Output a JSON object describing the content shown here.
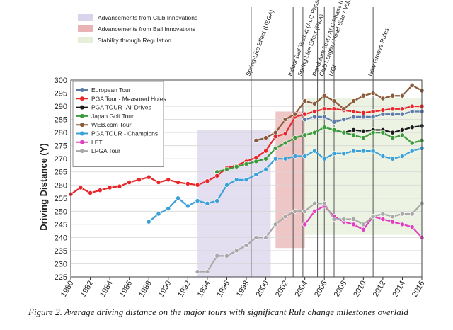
{
  "caption": "Figure 2. Average driving distance on the major tours with significant Rule change milestones overlaid",
  "chart_data": {
    "type": "line",
    "ylabel": "Driving Distance (Y)",
    "xlabel": "",
    "xlim": [
      1980,
      2016
    ],
    "ylim": [
      225,
      300
    ],
    "x_ticks": [
      1980,
      1982,
      1984,
      1986,
      1988,
      1990,
      1992,
      1994,
      1996,
      1998,
      2000,
      2002,
      2004,
      2006,
      2008,
      2010,
      2012,
      2014,
      2016
    ],
    "y_ticks": [
      225,
      230,
      235,
      240,
      245,
      250,
      255,
      260,
      265,
      270,
      275,
      280,
      285,
      290,
      295,
      300
    ],
    "grid": "horizontal",
    "legend_position": "top-left",
    "regions": [
      {
        "name": "Advancements from Club Innovations",
        "x": [
          1993,
          2000.5
        ],
        "y": [
          225,
          281
        ],
        "color": "#d9d4ec"
      },
      {
        "name": "Advancements from Ball Innovations",
        "x": [
          2001,
          2004
        ],
        "y": [
          236,
          288
        ],
        "color": "#e9b3b3"
      },
      {
        "name": "Stability through Regulation",
        "x": [
          2004,
          2016
        ],
        "y": [
          241,
          293
        ],
        "color": "#e6efd8"
      }
    ],
    "milestones": [
      {
        "x": 1998.5,
        "label": "Spring-Like Effect (USGA)"
      },
      {
        "x": 2002.8,
        "label": "Indoor Ball Testing (ALC Phase I)"
      },
      {
        "x": 2003.8,
        "label": "Spring-Like Effect (R&A)"
      },
      {
        "x": 2005.3,
        "label": "Pendulum Test / ALC Phase II"
      },
      {
        "x": 2006,
        "label": "Club Length / Head Size / Volume"
      },
      {
        "x": 2007,
        "label": "MOI"
      },
      {
        "x": 2011,
        "label": "New Groove Rules"
      }
    ],
    "series": [
      {
        "name": "European Tour",
        "color": "#5b7aa8",
        "x": [
          2004,
          2005,
          2006,
          2007,
          2008,
          2009,
          2010,
          2011,
          2012,
          2013,
          2014,
          2015,
          2016
        ],
        "y": [
          285,
          286,
          286,
          284,
          285,
          286,
          286,
          286,
          287,
          287,
          287,
          288,
          288
        ]
      },
      {
        "name": "PGA Tour - Measured Holes",
        "color": "#e8262a",
        "x": [
          1980,
          1981,
          1982,
          1983,
          1984,
          1985,
          1986,
          1987,
          1988,
          1989,
          1990,
          1991,
          1992,
          1993,
          1994,
          1995,
          1996,
          1997,
          1998,
          1999,
          2000,
          2001,
          2002,
          2003,
          2004,
          2005,
          2006,
          2007,
          2008,
          2009,
          2010,
          2011,
          2012,
          2013,
          2014,
          2015,
          2016
        ],
        "y": [
          256.5,
          259,
          257,
          258,
          259,
          259.5,
          261,
          262,
          263,
          261,
          262,
          261,
          260.5,
          260,
          261.5,
          263.5,
          266.5,
          267.5,
          269,
          270.5,
          273,
          278.5,
          279.5,
          286,
          287,
          288,
          289,
          289,
          288.5,
          288,
          287.5,
          288,
          288.5,
          289,
          289,
          290,
          290
        ]
      },
      {
        "name": "PGA TOUR -All Drives",
        "color": "#1a1a1a",
        "x": [
          2007,
          2008,
          2009,
          2010,
          2011,
          2012,
          2013,
          2014,
          2015,
          2016
        ],
        "y": [
          281,
          280,
          281,
          280.5,
          281,
          281,
          280,
          281,
          282,
          282.5
        ]
      },
      {
        "name": "Japan Golf Tour",
        "color": "#3c9a3c",
        "x": [
          1995,
          1996,
          1997,
          1998,
          1999,
          2000,
          2001,
          2002,
          2003,
          2004,
          2005,
          2006,
          2007,
          2008,
          2009,
          2010,
          2011,
          2012,
          2013,
          2014,
          2015,
          2016
        ],
        "y": [
          265,
          266,
          267,
          268,
          269,
          270,
          274,
          276,
          278,
          279,
          280,
          282,
          281,
          280,
          279,
          278,
          280,
          280,
          278,
          279,
          276,
          277
        ]
      },
      {
        "name": "WEB.com Tour",
        "color": "#8a5a3a",
        "x": [
          1999,
          2000,
          2001,
          2002,
          2003,
          2004,
          2005,
          2006,
          2007,
          2008,
          2009,
          2010,
          2011,
          2012,
          2013,
          2014,
          2015,
          2016
        ],
        "y": [
          277,
          278,
          280,
          285,
          287,
          292,
          291,
          294,
          292,
          289,
          292,
          294,
          295,
          293,
          294,
          294,
          298,
          296
        ]
      },
      {
        "name": "PGA TOUR - Champions",
        "color": "#3aa0d8",
        "x": [
          1988,
          1989,
          1990,
          1991,
          1992,
          1993,
          1994,
          1995,
          1996,
          1997,
          1998,
          1999,
          2000,
          2001,
          2002,
          2003,
          2004,
          2005,
          2006,
          2007,
          2008,
          2009,
          2010,
          2011,
          2012,
          2013,
          2014,
          2015,
          2016
        ],
        "y": [
          246,
          249,
          251,
          255,
          252,
          254,
          253,
          254,
          260,
          262,
          262,
          264,
          266,
          270,
          270,
          271,
          271,
          273,
          270,
          272,
          272,
          273,
          273,
          273,
          271,
          270,
          271,
          273,
          274
        ]
      },
      {
        "name": "LET",
        "color": "#e040c0",
        "x": [
          2004,
          2005,
          2006,
          2007,
          2008,
          2009,
          2010,
          2011,
          2012,
          2013,
          2014,
          2015,
          2016
        ],
        "y": [
          245,
          250,
          252,
          248,
          246,
          245,
          243,
          248,
          247,
          246,
          245,
          244,
          240
        ]
      },
      {
        "name": "LPGA Tour",
        "color": "#a8a8a8",
        "x": [
          1993,
          1994,
          1995,
          1996,
          1997,
          1998,
          1999,
          2000,
          2001,
          2002,
          2003,
          2004,
          2005,
          2006,
          2007,
          2008,
          2009,
          2010,
          2011,
          2012,
          2013,
          2014,
          2015,
          2016
        ],
        "y": [
          227,
          227,
          233,
          233,
          235,
          237,
          240,
          240,
          245,
          248,
          250,
          250,
          253,
          253,
          247,
          247,
          247,
          245,
          248,
          249,
          248,
          249,
          249,
          253
        ]
      }
    ]
  }
}
